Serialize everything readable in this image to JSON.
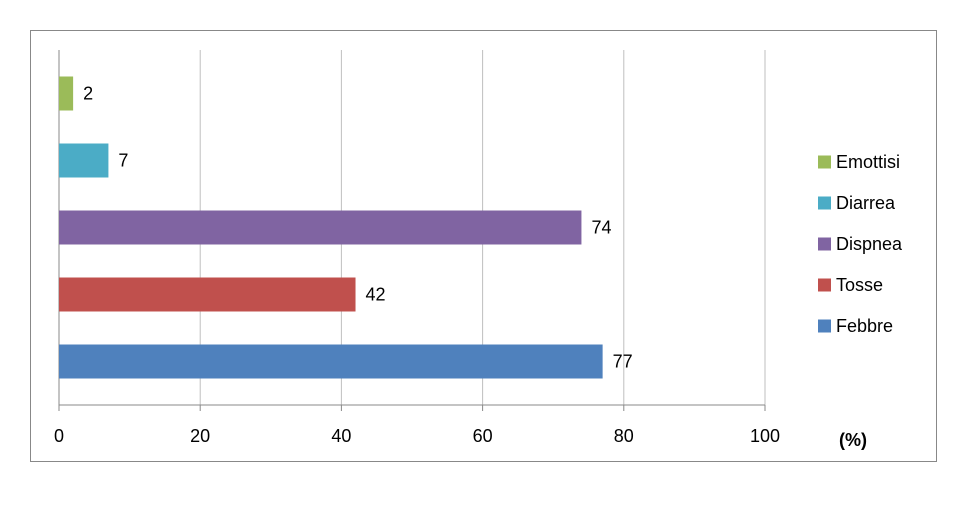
{
  "chart_data": {
    "type": "bar",
    "orientation": "horizontal",
    "categories": [
      "Febbre",
      "Tosse",
      "Dispnea",
      "Diarrea",
      "Emottisi"
    ],
    "values": [
      77,
      42,
      74,
      7,
      2
    ],
    "colors": [
      "#4f81bd",
      "#c0504d",
      "#8064a2",
      "#4bacc6",
      "#9bbb59"
    ],
    "xlabel": "(%)",
    "xlim": [
      0,
      100
    ],
    "xticks": [
      0,
      20,
      40,
      60,
      80,
      100
    ],
    "grid": true,
    "legend": "right"
  }
}
